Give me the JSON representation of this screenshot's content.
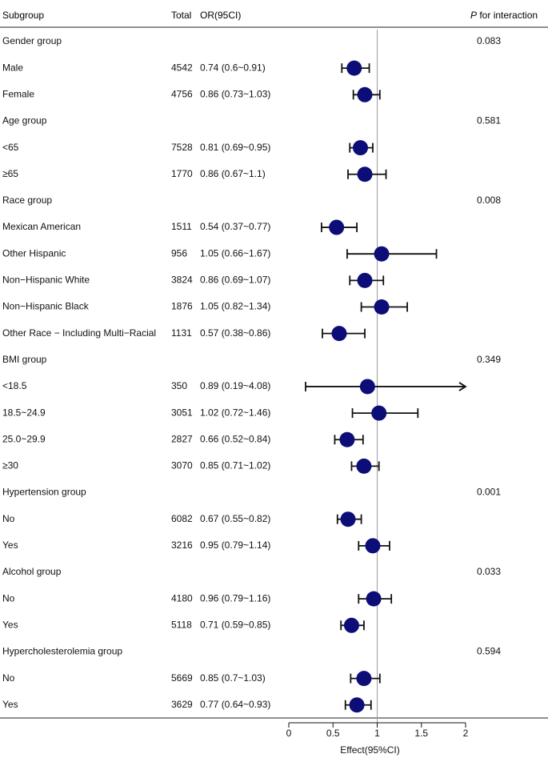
{
  "chart_data": {
    "type": "forest",
    "title": "",
    "xlabel": "Effect(95%CI)",
    "xlim": [
      0,
      2
    ],
    "reference_line": 1,
    "x_ticks": [
      0,
      0.5,
      1,
      1.5,
      2
    ],
    "x_tick_labels": [
      "0",
      "0.5",
      "1",
      "1.5",
      "2"
    ],
    "headers": {
      "subgroup": "Subgroup",
      "total": "Total",
      "or": "OR(95CI)",
      "p_italic": "P",
      "p_rest": " for interaction"
    },
    "rows": [
      {
        "type": "group",
        "label": "Gender group",
        "p": "0.083"
      },
      {
        "type": "item",
        "label": "Male",
        "total": "4542",
        "ci_text": "0.74 (0.6~0.91)",
        "or": 0.74,
        "lo": 0.6,
        "hi": 0.91
      },
      {
        "type": "item",
        "label": "Female",
        "total": "4756",
        "ci_text": "0.86 (0.73~1.03)",
        "or": 0.86,
        "lo": 0.73,
        "hi": 1.03
      },
      {
        "type": "group",
        "label": "Age group",
        "p": "0.581"
      },
      {
        "type": "item",
        "label": "<65",
        "total": "7528",
        "ci_text": "0.81 (0.69~0.95)",
        "or": 0.81,
        "lo": 0.69,
        "hi": 0.95
      },
      {
        "type": "item",
        "label": "≥65",
        "total": "1770",
        "ci_text": "0.86 (0.67~1.1)",
        "or": 0.86,
        "lo": 0.67,
        "hi": 1.1
      },
      {
        "type": "group",
        "label": "Race group",
        "p": "0.008"
      },
      {
        "type": "item",
        "label": "Mexican American",
        "total": "1511",
        "ci_text": "0.54 (0.37~0.77)",
        "or": 0.54,
        "lo": 0.37,
        "hi": 0.77
      },
      {
        "type": "item",
        "label": "Other Hispanic",
        "total": "956",
        "ci_text": "1.05 (0.66~1.67)",
        "or": 1.05,
        "lo": 0.66,
        "hi": 1.67
      },
      {
        "type": "item",
        "label": "Non−Hispanic White",
        "total": "3824",
        "ci_text": "0.86 (0.69~1.07)",
        "or": 0.86,
        "lo": 0.69,
        "hi": 1.07
      },
      {
        "type": "item",
        "label": "Non−Hispanic Black",
        "total": "1876",
        "ci_text": "1.05 (0.82~1.34)",
        "or": 1.05,
        "lo": 0.82,
        "hi": 1.34
      },
      {
        "type": "item",
        "label": "Other Race − Including Multi−Racial",
        "total": "1131",
        "ci_text": "0.57 (0.38~0.86)",
        "or": 0.57,
        "lo": 0.38,
        "hi": 0.86
      },
      {
        "type": "group",
        "label": "BMI group",
        "p": "0.349"
      },
      {
        "type": "item",
        "label": "<18.5",
        "total": "350",
        "ci_text": "0.89 (0.19~4.08)",
        "or": 0.89,
        "lo": 0.19,
        "hi": 4.08,
        "arrow": true
      },
      {
        "type": "item",
        "label": "18.5~24.9",
        "total": "3051",
        "ci_text": "1.02 (0.72~1.46)",
        "or": 1.02,
        "lo": 0.72,
        "hi": 1.46
      },
      {
        "type": "item",
        "label": "25.0~29.9",
        "total": "2827",
        "ci_text": "0.66 (0.52~0.84)",
        "or": 0.66,
        "lo": 0.52,
        "hi": 0.84
      },
      {
        "type": "item",
        "label": "≥30",
        "total": "3070",
        "ci_text": "0.85 (0.71~1.02)",
        "or": 0.85,
        "lo": 0.71,
        "hi": 1.02
      },
      {
        "type": "group",
        "label": "Hypertension group",
        "p": "0.001"
      },
      {
        "type": "item",
        "label": "No",
        "total": "6082",
        "ci_text": "0.67 (0.55~0.82)",
        "or": 0.67,
        "lo": 0.55,
        "hi": 0.82
      },
      {
        "type": "item",
        "label": "Yes",
        "total": "3216",
        "ci_text": "0.95 (0.79~1.14)",
        "or": 0.95,
        "lo": 0.79,
        "hi": 1.14
      },
      {
        "type": "group",
        "label": "Alcohol group",
        "p": "0.033"
      },
      {
        "type": "item",
        "label": "No",
        "total": "4180",
        "ci_text": "0.96 (0.79~1.16)",
        "or": 0.96,
        "lo": 0.79,
        "hi": 1.16
      },
      {
        "type": "item",
        "label": "Yes",
        "total": "5118",
        "ci_text": "0.71 (0.59~0.85)",
        "or": 0.71,
        "lo": 0.59,
        "hi": 0.85
      },
      {
        "type": "group",
        "label": "Hypercholesterolemia group",
        "p": "0.594"
      },
      {
        "type": "item",
        "label": "No",
        "total": "5669",
        "ci_text": "0.85 (0.7~1.03)",
        "or": 0.85,
        "lo": 0.7,
        "hi": 1.03
      },
      {
        "type": "item",
        "label": "Yes",
        "total": "3629",
        "ci_text": "0.77 (0.64~0.93)",
        "or": 0.77,
        "lo": 0.64,
        "hi": 0.93
      }
    ]
  },
  "colors": {
    "point": "#0d0d78",
    "ci": "#111111",
    "ref_line": "#9a9a9a",
    "rule": "#222222"
  }
}
